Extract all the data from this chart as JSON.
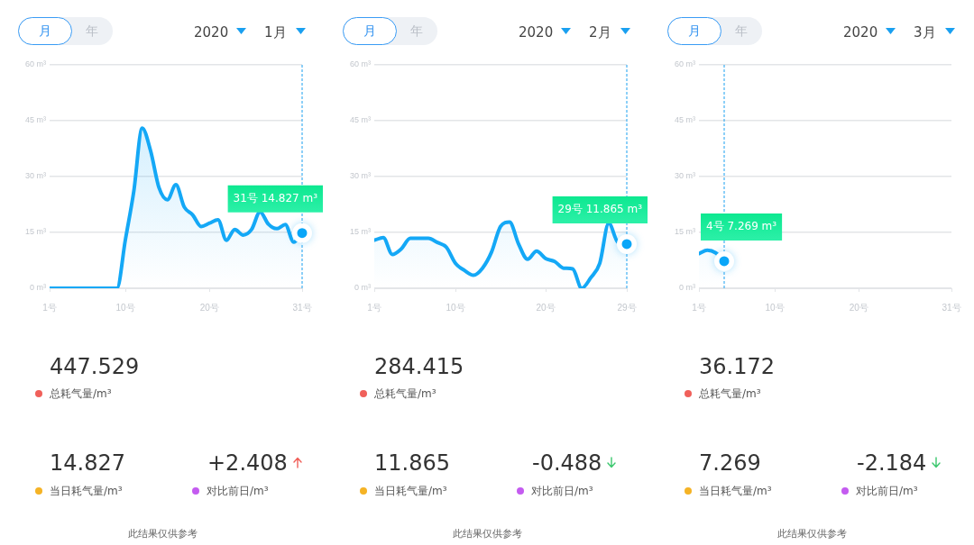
{
  "chart_data": [
    {
      "type": "area",
      "xlim": [
        1,
        31
      ],
      "xticks": [
        {
          "value": 1,
          "label": "1号"
        },
        {
          "value": 10,
          "label": "10号"
        },
        {
          "value": 20,
          "label": "20号"
        },
        {
          "value": 31,
          "label": "31号"
        }
      ],
      "ylim": [
        0,
        60
      ],
      "yticks": [
        {
          "value": 0,
          "label": "0 m³"
        },
        {
          "value": 15,
          "label": "15 m³"
        },
        {
          "value": 30,
          "label": "30 m³"
        },
        {
          "value": 45,
          "label": "45 m³"
        },
        {
          "value": 60,
          "label": "60 m³"
        }
      ],
      "grid": "y",
      "legend": false,
      "series": [
        {
          "color": "#14a8f6",
          "x": [
            1,
            2,
            3,
            4,
            5,
            6,
            7,
            8,
            9,
            10,
            11,
            12,
            13,
            14,
            15,
            16,
            17,
            18,
            19,
            20,
            21,
            22,
            23,
            24,
            25,
            26,
            27,
            28,
            29,
            30,
            31
          ],
          "values": [
            0,
            0,
            0,
            0,
            0,
            0,
            0,
            0,
            0,
            13,
            26,
            43,
            36.9,
            27,
            23.8,
            27.8,
            21.8,
            19.7,
            16.6,
            17.5,
            18.4,
            12.9,
            15.8,
            14.3,
            15.8,
            20.5,
            17.2,
            16,
            17.1,
            12.4,
            14.827
          ]
        }
      ],
      "ref_lines": [
        {
          "axis": "x",
          "value": 31,
          "color": "#1aa0f0",
          "line_style": "dashed"
        }
      ],
      "annotations": [
        {
          "text": "31号 14.827 m³",
          "x": 31,
          "y": 14.827
        },
        "月",
        "年",
        "2020",
        "1月",
        "447.529",
        "总耗气量/m³",
        "14.827",
        "当日耗气量/m³",
        "+2.408",
        "对比前日/m³",
        "此结果仅供参考"
      ]
    },
    {
      "type": "area",
      "xlim": [
        1,
        29
      ],
      "xticks": [
        {
          "value": 1,
          "label": "1号"
        },
        {
          "value": 10,
          "label": "10号"
        },
        {
          "value": 20,
          "label": "20号"
        },
        {
          "value": 29,
          "label": "29号"
        }
      ],
      "ylim": [
        0,
        60
      ],
      "yticks": [
        {
          "value": 0,
          "label": "0 m³"
        },
        {
          "value": 15,
          "label": "15 m³"
        },
        {
          "value": 30,
          "label": "30 m³"
        },
        {
          "value": 45,
          "label": "45 m³"
        },
        {
          "value": 60,
          "label": "60 m³"
        }
      ],
      "grid": "y",
      "legend": false,
      "series": [
        {
          "color": "#14a8f6",
          "x": [
            1,
            2,
            3,
            4,
            5,
            6,
            7,
            8,
            9,
            10,
            11,
            12,
            13,
            14,
            15,
            16,
            17,
            18,
            19,
            20,
            21,
            22,
            23,
            24,
            25,
            26,
            27,
            28,
            29
          ],
          "values": [
            12.9,
            13.6,
            9.1,
            10.6,
            13.4,
            13.4,
            13.4,
            12.3,
            11,
            6.7,
            4.8,
            3.5,
            5.4,
            9.7,
            16.6,
            17.8,
            11.9,
            7.8,
            10,
            8,
            7.2,
            5.4,
            5.2,
            0,
            2.8,
            6.7,
            17.5,
            12.4,
            11.865
          ]
        }
      ],
      "ref_lines": [
        {
          "axis": "x",
          "value": 29,
          "color": "#1aa0f0",
          "line_style": "dashed"
        }
      ],
      "annotations": [
        {
          "text": "29号 11.865 m³",
          "x": 29,
          "y": 11.865
        },
        "月",
        "年",
        "2020",
        "2月",
        "284.415",
        "总耗气量/m³",
        "11.865",
        "当日耗气量/m³",
        "-0.488",
        "对比前日/m³",
        "此结果仅供参考"
      ]
    },
    {
      "type": "area",
      "xlim": [
        1,
        31
      ],
      "xticks": [
        {
          "value": 1,
          "label": "1号"
        },
        {
          "value": 10,
          "label": "10号"
        },
        {
          "value": 20,
          "label": "20号"
        },
        {
          "value": 31,
          "label": "31号"
        }
      ],
      "ylim": [
        0,
        60
      ],
      "yticks": [
        {
          "value": 0,
          "label": "0 m³"
        },
        {
          "value": 15,
          "label": "15 m³"
        },
        {
          "value": 30,
          "label": "30 m³"
        },
        {
          "value": 45,
          "label": "45 m³"
        },
        {
          "value": 60,
          "label": "60 m³"
        }
      ],
      "grid": "y",
      "legend": false,
      "series": [
        {
          "color": "#14a8f6",
          "x": [
            1,
            2,
            3,
            4
          ],
          "values": [
            9.3,
            10.2,
            9.5,
            7.269
          ]
        }
      ],
      "ref_lines": [
        {
          "axis": "x",
          "value": 4,
          "color": "#1aa0f0",
          "line_style": "dashed"
        }
      ],
      "annotations": [
        {
          "text": "4号 7.269 m³",
          "x": 4,
          "y": 7.269
        },
        "月",
        "年",
        "2020",
        "3月",
        "36.172",
        "总耗气量/m³",
        "7.269",
        "当日耗气量/m³",
        "-2.184",
        "对比前日/m³",
        "此结果仅供参考"
      ]
    }
  ]
}
